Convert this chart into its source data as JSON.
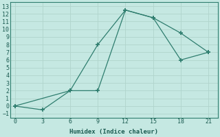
{
  "xlabel": "Humidex (Indice chaleur)",
  "line1_x": [
    0,
    3,
    6,
    9,
    12,
    15,
    18,
    21
  ],
  "line1_y": [
    0,
    -0.5,
    2,
    8,
    12.5,
    11.5,
    9.5,
    7
  ],
  "line2_x": [
    0,
    6,
    9,
    12,
    15,
    18,
    21
  ],
  "line2_y": [
    0,
    2,
    2,
    12.5,
    11.5,
    6,
    7
  ],
  "color": "#2e7d6e",
  "bg_color": "#c5e8e2",
  "grid_color": "#b0d4cc",
  "xlim": [
    -0.5,
    22
  ],
  "ylim": [
    -1.5,
    13.5
  ],
  "xticks": [
    0,
    3,
    6,
    9,
    12,
    15,
    18,
    21
  ],
  "yticks": [
    -1,
    0,
    1,
    2,
    3,
    4,
    5,
    6,
    7,
    8,
    9,
    10,
    11,
    12,
    13
  ]
}
